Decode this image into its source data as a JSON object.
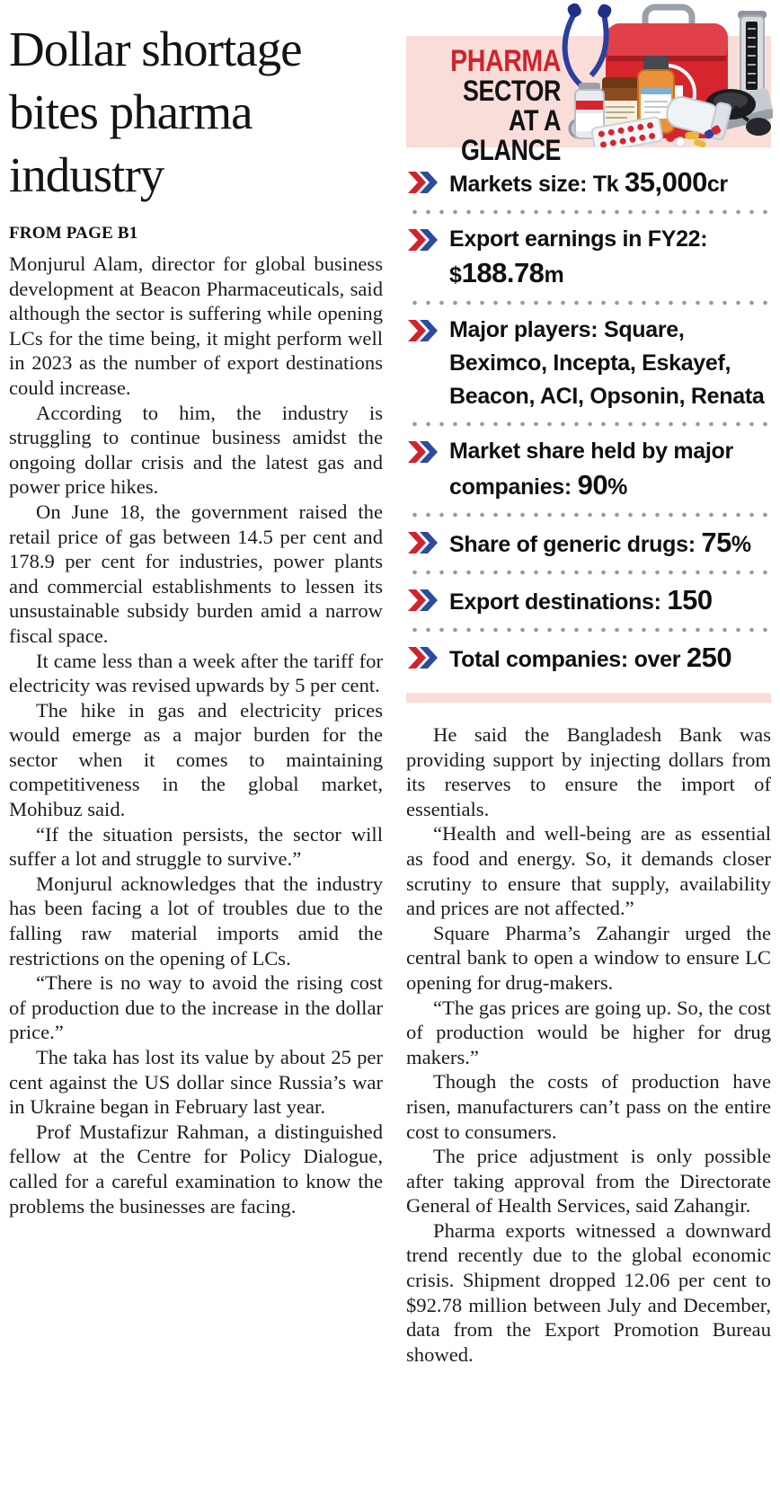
{
  "article": {
    "headline": "Dollar shortage bites pharma industry",
    "from_page": "FROM PAGE B1",
    "left_paragraphs": [
      "Monjurul Alam, director for global business development at Beacon Pharmaceuticals, said although the sector is suffering while opening LCs for the time being, it might perform well in 2023 as the number of export destinations could increase.",
      "According to him, the industry is struggling to continue business amidst the ongoing dollar crisis and the latest gas and power price hikes.",
      "On June 18, the government raised the retail price of gas between 14.5 per cent and 178.9 per cent for industries, power plants and commercial establishments to lessen its unsustainable subsidy burden amid a narrow fiscal space.",
      "It came less than a week after the tariff for electricity was revised upwards by 5 per cent.",
      "The hike in gas and electricity prices would emerge as a major burden for the sector when it comes to maintaining competitiveness in the global market, Mohibuz said.",
      "“If the situation persists, the sector will suffer a lot and struggle to survive.”",
      "Monjurul acknowledges that the industry has been facing a lot of troubles due to the falling raw material imports amid the restrictions on the opening of LCs.",
      "“There is no way to avoid the rising cost of production due to the increase in the dollar price.”",
      "The taka has lost its value by about 25 per cent against the US dollar since Russia’s war in Ukraine began in February last year.",
      "Prof Mustafizur Rahman, a distinguished fellow at the Centre for Policy Dialogue, called for a careful examination to know the problems the businesses are facing."
    ],
    "right_paragraphs": [
      "He said the Bangladesh Bank was providing support by injecting dollars from its reserves to ensure the import of essentials.",
      "“Health and well-being are as essential as food and energy. So, it demands closer scrutiny to ensure that supply, availability and prices are not affected.”",
      "Square Pharma’s Zahangir urged the central bank to open a window to ensure LC opening for drug-makers.",
      "“The gas prices are going up. So, the cost of production would be higher for drug makers.”",
      "Though the costs of production have risen, manufacturers can’t pass on the entire cost to consumers.",
      "The price adjustment is only possible after taking approval from the Directorate General of Health Services, said Zahangir.",
      "Pharma exports witnessed a downward trend recently due to the global economic crisis. Shipment dropped 12.06 per cent to $92.78 million between July and December, data from the Export Promotion Bureau showed."
    ]
  },
  "infobox": {
    "title": {
      "line1": "PHARMA",
      "line2": "SECTOR AT A",
      "line3": "GLANCE"
    },
    "illustration_icons": [
      "stethoscope-icon",
      "first-aid-kit-icon",
      "medicine-bottle-icon",
      "pill-bottle-icon",
      "vial-icon",
      "white-pill-bottle-icon",
      "blister-pack-icon",
      "blood-pressure-monitor-icon",
      "pills-icon"
    ],
    "stats": [
      {
        "segments": [
          {
            "t": "Markets size: Tk ",
            "s": "label"
          },
          {
            "t": "35,000",
            "s": "big"
          },
          {
            "t": "cr",
            "s": "label"
          }
        ]
      },
      {
        "segments": [
          {
            "t": "Export earnings in FY22: ",
            "s": "label"
          },
          {
            "t": "$",
            "s": "label"
          },
          {
            "t": "188.78",
            "s": "big"
          },
          {
            "t": "m",
            "s": "label"
          }
        ]
      },
      {
        "segments": [
          {
            "t": "Major players: Square, Beximco, Incepta, Eskayef, Beacon, ACI, Opsonin, Renata",
            "s": "label"
          }
        ]
      },
      {
        "segments": [
          {
            "t": "Market share held by major companies: ",
            "s": "label"
          },
          {
            "t": "90",
            "s": "big"
          },
          {
            "t": "%",
            "s": "label"
          }
        ]
      },
      {
        "segments": [
          {
            "t": "Share of generic drugs: ",
            "s": "label"
          },
          {
            "t": "75",
            "s": "big"
          },
          {
            "t": "%",
            "s": "label"
          }
        ]
      },
      {
        "segments": [
          {
            "t": "Export destinations: ",
            "s": "label"
          },
          {
            "t": "150",
            "s": "big"
          }
        ]
      },
      {
        "segments": [
          {
            "t": "Total companies: over ",
            "s": "label"
          },
          {
            "t": "250",
            "s": "big"
          }
        ]
      }
    ],
    "colors": {
      "pink": "#f9ddd9",
      "red": "#d0232c",
      "blue": "#2c4b9d",
      "dot_gray": "#9a9a9a"
    }
  }
}
